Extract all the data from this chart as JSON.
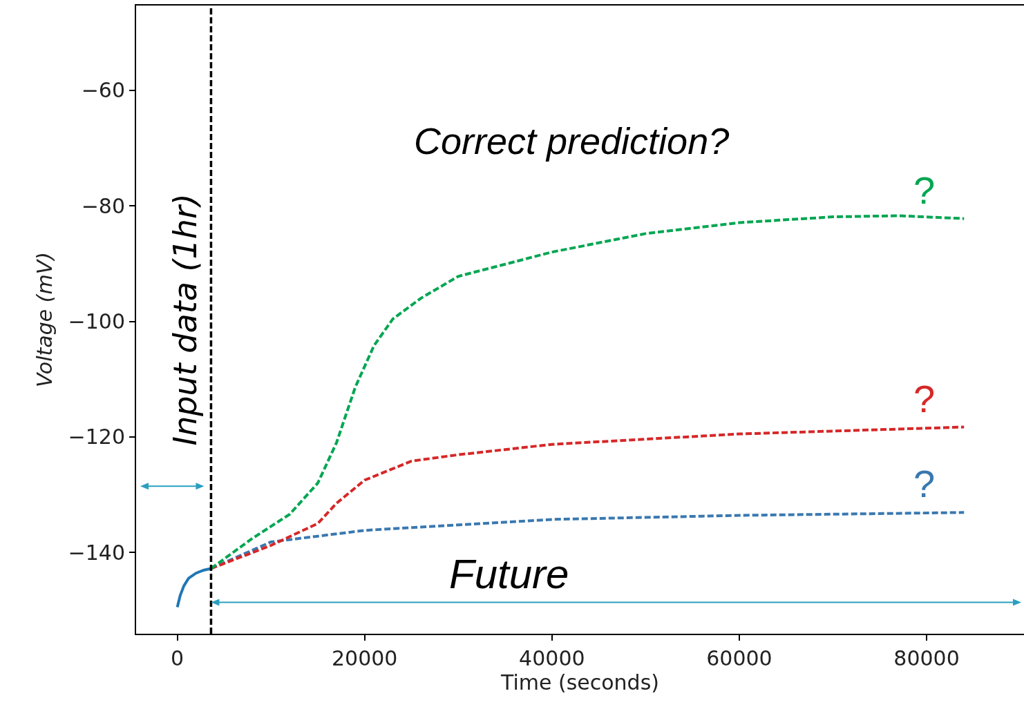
{
  "chart_data": {
    "type": "line",
    "xlabel": "Time (seconds)",
    "ylabel": "Voltage (mV)",
    "xlim": [
      -4400,
      90400
    ],
    "ylim": [
      -154.1,
      -45.3
    ],
    "xticks": [
      0,
      20000,
      40000,
      60000,
      80000
    ],
    "yticks": [
      {
        "value": -60,
        "label": "−60"
      },
      {
        "value": -80,
        "label": "−80"
      },
      {
        "value": -100,
        "label": "−100"
      },
      {
        "value": -120,
        "label": "−120"
      },
      {
        "value": -140,
        "label": "−140"
      }
    ],
    "grid": false,
    "legend": false,
    "marker": "none",
    "ref_lines": [
      {
        "axis": "x",
        "value": 3600,
        "label": "Input data (1hr)",
        "color": "#000000",
        "line_style": "dashed"
      }
    ],
    "annotations": [
      "Correct prediction?",
      "Future"
    ],
    "series": [
      {
        "color": "#1f77b4",
        "line_style": "solid",
        "x": [
          0,
          300,
          700,
          1200,
          2000,
          2800,
          3600
        ],
        "values": [
          -149.5,
          -147.5,
          -145.8,
          -144.5,
          -143.6,
          -143.1,
          -142.8
        ]
      },
      {
        "name": "?",
        "color": "#00a651",
        "line_style": "dashed",
        "x": [
          3600,
          8000,
          12000,
          15000,
          17000,
          19000,
          21000,
          23000,
          26000,
          30000,
          40000,
          50000,
          60000,
          70000,
          77000,
          84000
        ],
        "values": [
          -142.8,
          -137.6,
          -133.4,
          -128,
          -121,
          -111.4,
          -104.2,
          -99.6,
          -96,
          -92.2,
          -88,
          -84.8,
          -82.9,
          -81.9,
          -81.7,
          -82.2
        ]
      },
      {
        "name": "?",
        "color": "#d62728",
        "line_style": "dashed",
        "x": [
          3600,
          10000,
          15000,
          17000,
          20000,
          25000,
          30000,
          40000,
          60000,
          84000
        ],
        "values": [
          -142.8,
          -138.8,
          -135,
          -131.5,
          -127.5,
          -124.2,
          -123.1,
          -121.3,
          -119.5,
          -118.3
        ]
      },
      {
        "name": "?",
        "color": "#3a78b0",
        "line_style": "dashed",
        "x": [
          3600,
          10000,
          20000,
          40000,
          60000,
          84000
        ],
        "values": [
          -142.8,
          -138.2,
          -136.2,
          -134.3,
          -133.6,
          -133.1
        ]
      }
    ]
  }
}
